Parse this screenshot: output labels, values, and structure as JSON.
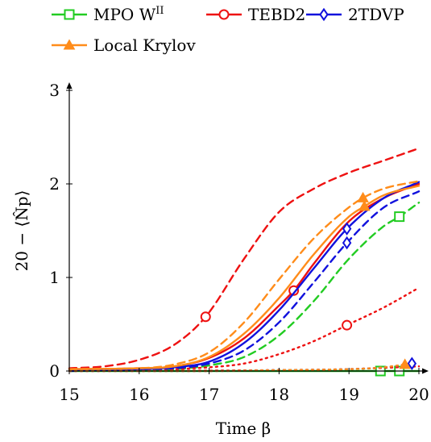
{
  "chart_data": {
    "type": "line",
    "title": "",
    "xlabel": "Time β",
    "ylabel": "20 − ⟨N̂p⟩",
    "xlim": [
      15,
      20
    ],
    "ylim": [
      0,
      3
    ],
    "xticks": [
      "15",
      "16",
      "17",
      "18",
      "19",
      "20"
    ],
    "yticks": [
      "0",
      "1",
      "2",
      "3"
    ],
    "legend_position": "top",
    "legend": [
      {
        "label": "MPO W",
        "sup": "II",
        "color": "#22cc22",
        "marker": "square"
      },
      {
        "label": "TEBD2",
        "color": "#ee1111",
        "marker": "circle"
      },
      {
        "label": "2TDVP",
        "color": "#1111dd",
        "marker": "diamond"
      },
      {
        "label": "Local Krylov",
        "color": "#ff8c1a",
        "marker": "triangle"
      }
    ],
    "series": [
      {
        "method": "MPO W^II",
        "style": "solid",
        "color": "#22cc22",
        "marker": "square",
        "x": [
          15.0,
          16.0,
          17.0,
          18.0,
          19.0,
          19.45,
          19.72,
          20.0
        ],
        "y": [
          0.0,
          0.0,
          0.0,
          0.0,
          0.0,
          0.0,
          0.0,
          0.0
        ],
        "markers_x": [
          19.45,
          19.72
        ]
      },
      {
        "method": "MPO W^II",
        "style": "dashed",
        "color": "#22cc22",
        "marker": "square",
        "x": [
          15.0,
          16.0,
          16.5,
          17.0,
          17.5,
          18.0,
          18.5,
          19.0,
          19.5,
          19.72,
          20.0
        ],
        "y": [
          0.0,
          0.01,
          0.02,
          0.06,
          0.15,
          0.38,
          0.75,
          1.2,
          1.55,
          1.65,
          1.8
        ],
        "markers_x": [
          19.72
        ]
      },
      {
        "method": "TEBD2",
        "style": "solid",
        "color": "#ee1111",
        "marker": "circle",
        "x": [
          15.0,
          16.0,
          16.5,
          17.0,
          17.5,
          18.0,
          18.21,
          18.5,
          19.0,
          19.5,
          20.0
        ],
        "y": [
          0.02,
          0.03,
          0.05,
          0.14,
          0.35,
          0.7,
          0.86,
          1.15,
          1.6,
          1.85,
          2.0
        ],
        "markers_x": [
          18.21
        ]
      },
      {
        "method": "TEBD2",
        "style": "dashed",
        "color": "#ee1111",
        "marker": "circle",
        "x": [
          15.0,
          15.5,
          16.0,
          16.5,
          16.95,
          17.5,
          18.0,
          18.5,
          19.0,
          19.5,
          20.0
        ],
        "y": [
          0.03,
          0.05,
          0.12,
          0.28,
          0.58,
          1.2,
          1.7,
          1.95,
          2.12,
          2.25,
          2.38
        ],
        "markers_x": [
          16.95
        ]
      },
      {
        "method": "TEBD2",
        "style": "dotted",
        "color": "#ee1111",
        "marker": "circle",
        "x": [
          15.0,
          16.0,
          17.0,
          17.5,
          18.0,
          18.5,
          18.97,
          19.5,
          20.0
        ],
        "y": [
          0.0,
          0.01,
          0.04,
          0.08,
          0.18,
          0.32,
          0.49,
          0.68,
          0.89
        ],
        "markers_x": [
          18.97
        ]
      },
      {
        "method": "TEBD2",
        "style": "dotted-low",
        "color": "#ee1111",
        "marker": "circle",
        "x": [
          15.0,
          17.0,
          18.0,
          19.0,
          20.0
        ],
        "y": [
          0.0,
          0.005,
          0.01,
          0.02,
          0.05
        ],
        "markers_x": []
      },
      {
        "method": "2TDVP",
        "style": "solid",
        "color": "#1111dd",
        "marker": "diamond",
        "x": [
          15.0,
          16.0,
          16.5,
          17.0,
          17.5,
          18.0,
          18.5,
          18.97,
          19.5,
          20.0
        ],
        "y": [
          0.01,
          0.02,
          0.04,
          0.1,
          0.3,
          0.65,
          1.1,
          1.52,
          1.85,
          2.02
        ],
        "markers_x": [
          18.97
        ]
      },
      {
        "method": "2TDVP",
        "style": "dashed",
        "color": "#1111dd",
        "marker": "diamond",
        "x": [
          15.0,
          16.0,
          16.5,
          17.0,
          17.5,
          18.0,
          18.5,
          18.97,
          19.5,
          20.0
        ],
        "y": [
          0.0,
          0.02,
          0.03,
          0.08,
          0.22,
          0.52,
          0.95,
          1.37,
          1.75,
          1.92
        ],
        "markers_x": [
          18.97
        ]
      },
      {
        "method": "2TDVP",
        "style": "dotted",
        "color": "#1111dd",
        "marker": "diamond",
        "x": [
          15.0,
          17.0,
          18.0,
          19.0,
          19.5,
          19.9
        ],
        "y": [
          0.0,
          0.0,
          0.01,
          0.02,
          0.04,
          0.08
        ],
        "markers_x": [
          19.9
        ]
      },
      {
        "method": "Local Krylov",
        "style": "solid",
        "color": "#ff8c1a",
        "marker": "triangle",
        "x": [
          15.0,
          16.0,
          16.5,
          17.0,
          17.5,
          18.0,
          18.5,
          19.0,
          19.22,
          19.5,
          20.0
        ],
        "y": [
          0.02,
          0.03,
          0.05,
          0.15,
          0.4,
          0.78,
          1.25,
          1.65,
          1.76,
          1.88,
          1.98
        ],
        "markers_x": [
          19.22
        ]
      },
      {
        "method": "Local Krylov",
        "style": "dashed",
        "color": "#ff8c1a",
        "marker": "triangle",
        "x": [
          15.0,
          16.0,
          16.5,
          17.0,
          17.5,
          18.0,
          18.5,
          19.0,
          19.2,
          19.5,
          20.0
        ],
        "y": [
          0.02,
          0.03,
          0.07,
          0.2,
          0.52,
          0.98,
          1.42,
          1.75,
          1.85,
          1.95,
          2.03
        ],
        "markers_x": [
          19.2
        ]
      },
      {
        "method": "Local Krylov",
        "style": "dotted",
        "color": "#ff8c1a",
        "marker": "triangle",
        "x": [
          15.0,
          17.0,
          18.0,
          19.0,
          19.5,
          19.8
        ],
        "y": [
          0.0,
          0.0,
          0.01,
          0.02,
          0.04,
          0.07
        ],
        "markers_x": [
          19.8
        ]
      }
    ]
  }
}
